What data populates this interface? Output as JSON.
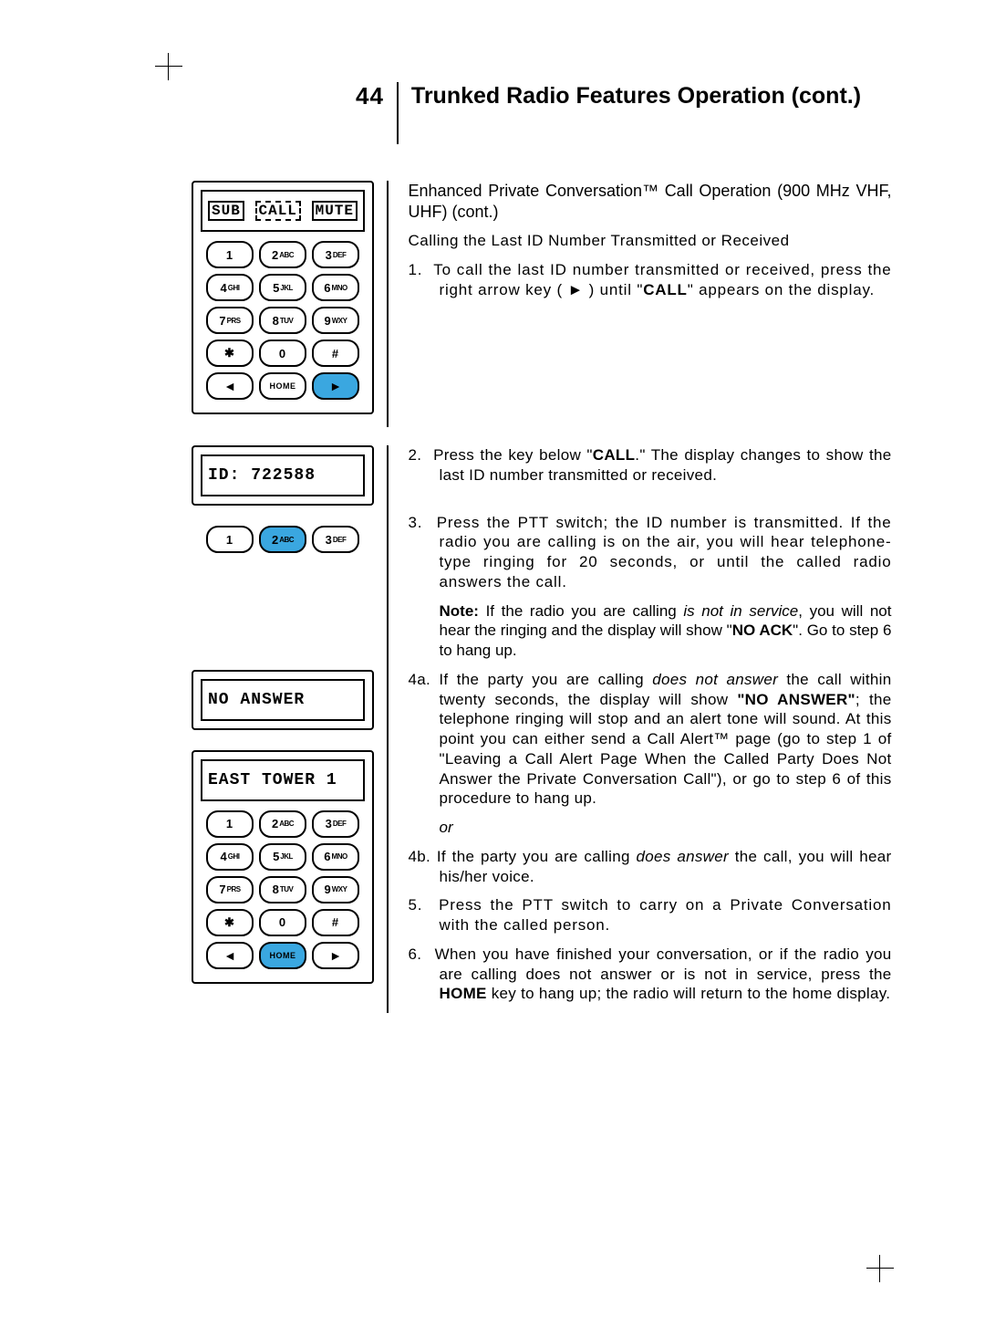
{
  "header": {
    "page_number": "44",
    "title": "Trunked Radio Features Operation (cont.)"
  },
  "intro": {
    "subhead": "Enhanced Private Conversation™ Call Operation (900 MHz VHF, UHF) (cont.)",
    "sub2": "Calling the Last ID Number Transmitted or Received"
  },
  "steps": {
    "s1_num": "1.",
    "s1_a": "To call the last ID number transmitted or received, press the right arrow key ( ",
    "s1_arrow": "►",
    "s1_b": " ) until \"",
    "s1_bold": "CALL",
    "s1_c": "\" appears on the display.",
    "s2_num": "2.",
    "s2_a": "Press the key below \"",
    "s2_bold": "CALL",
    "s2_b": ".\" The display changes to show the last ID number transmitted or received.",
    "s3_num": "3.",
    "s3": "Press the PTT switch; the ID number is transmitted. If the radio you are calling is on the air, you will hear telephone-type ringing for 20 seconds, or until the called radio answers the call.",
    "note_label": "Note:",
    "note_a": " If the radio you are calling ",
    "note_i1": "is not in service",
    "note_b": ", you will not hear the ringing and the display will show \"",
    "note_bold": "NO ACK",
    "note_c": "\". Go to step 6 to hang up.",
    "s4a_num": "4a.",
    "s4a_a": "If the party you are calling ",
    "s4a_i": "does not answer",
    "s4a_b": " the call within twenty seconds, the display will show ",
    "s4a_bold": "\"NO ANSWER\"",
    "s4a_c": "; the telephone ringing will stop and an alert tone will sound. At this point you can either send a Call Alert™ page (go to step 1 of \"Leaving a Call Alert Page When the Called Party Does Not Answer the Private Conversation Call\"), or go to step 6 of this procedure to hang up.",
    "or": "or",
    "s4b_num": "4b.",
    "s4b_a": "If the party you are calling ",
    "s4b_i": "does answer",
    "s4b_b": " the call, you will hear his/her voice.",
    "s5_num": "5.",
    "s5": "Press the PTT switch to carry on a Private Conversation with the called person.",
    "s6_num": "6.",
    "s6_a": "When you have finished your conversation, or if the radio you are calling does not answer or is not in service, press the ",
    "s6_bold": "HOME",
    "s6_b": " key to hang up; the radio will return to the home display."
  },
  "displays": {
    "softkeys": {
      "sub": "SUB",
      "call": "CALL",
      "mute": "MUTE"
    },
    "id_line": "ID: 722588",
    "no_answer": "NO ANSWER",
    "east_tower": "EAST TOWER 1"
  },
  "keys": {
    "k1": "1",
    "k2d": "2",
    "k2l": "ABC",
    "k3d": "3",
    "k3l": "DEF",
    "k4d": "4",
    "k4l": "GHI",
    "k5d": "5",
    "k5l": "JKL",
    "k6d": "6",
    "k6l": "MNO",
    "k7d": "7",
    "k7l": "PRS",
    "k8d": "8",
    "k8l": "TUV",
    "k9d": "9",
    "k9l": "WXY",
    "star": "✱",
    "k0": "0",
    "hash": "#",
    "left": "◄",
    "home": "HOME",
    "right": "►"
  },
  "colors": {
    "highlight": "#3aa7e0"
  }
}
